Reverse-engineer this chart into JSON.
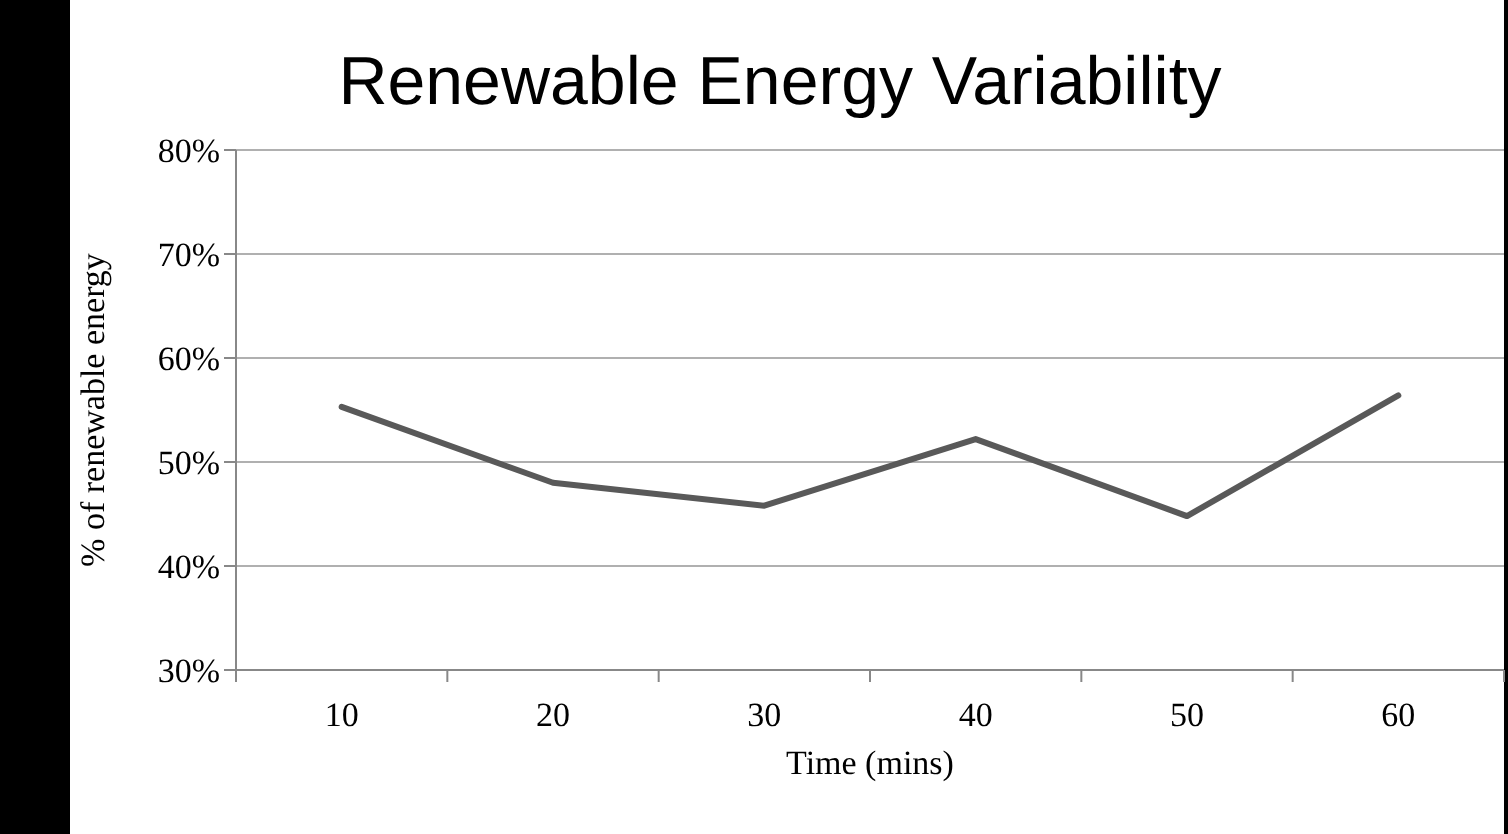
{
  "chart_data": {
    "type": "line",
    "title": "Renewable Energy Variability",
    "xlabel": "Time (mins)",
    "ylabel": "% of renewable energy",
    "categories": [
      "10",
      "20",
      "30",
      "40",
      "50",
      "60"
    ],
    "series": [
      {
        "color": "#595959",
        "values": [
          55.3,
          48,
          45.8,
          52.2,
          44.8,
          56.4
        ]
      }
    ],
    "ylim": [
      30,
      80
    ],
    "yticks": [
      {
        "value": 30,
        "label": "30%"
      },
      {
        "value": 40,
        "label": "40%"
      },
      {
        "value": 50,
        "label": "50%"
      },
      {
        "value": 60,
        "label": "60%"
      },
      {
        "value": 70,
        "label": "70%"
      },
      {
        "value": 80,
        "label": "80%"
      }
    ],
    "grid": "y",
    "marker": "none",
    "line_style": "solid"
  }
}
